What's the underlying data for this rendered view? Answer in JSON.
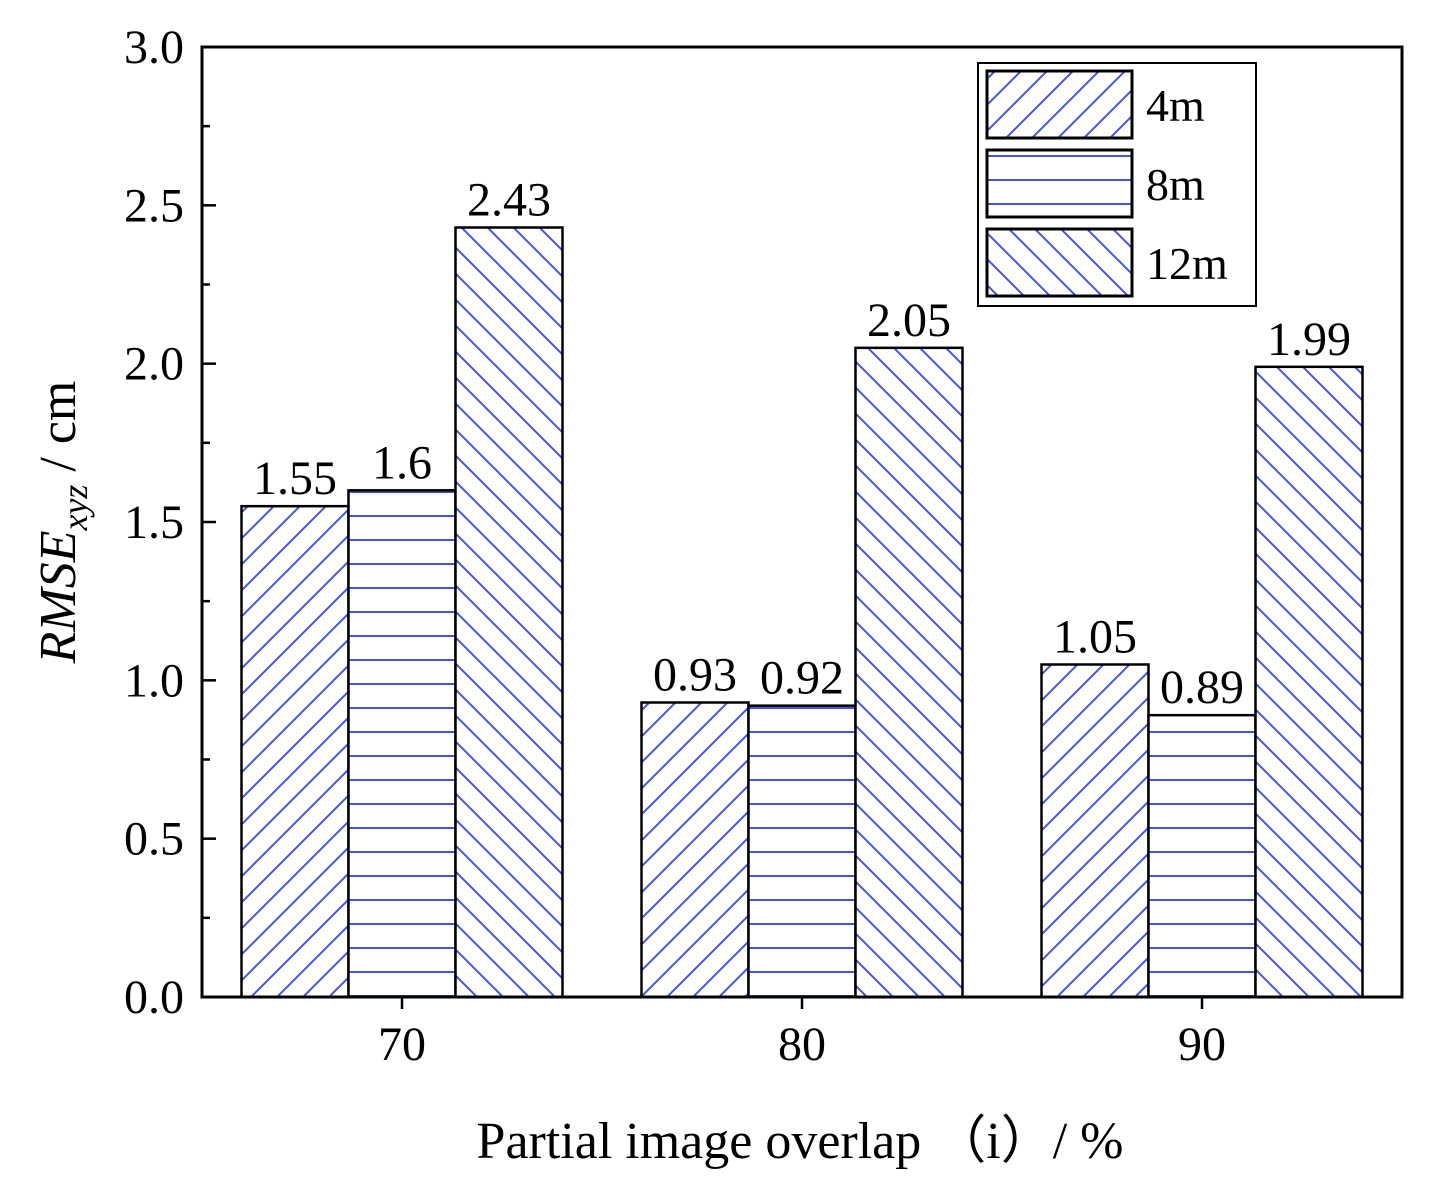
{
  "chart_data": {
    "type": "bar",
    "categories": [
      "70",
      "80",
      "90"
    ],
    "series": [
      {
        "name": "4m",
        "values": [
          1.55,
          0.93,
          1.05
        ],
        "labels": [
          "1.55",
          "0.93",
          "1.05"
        ],
        "pattern": "diag-forward"
      },
      {
        "name": "8m",
        "values": [
          1.6,
          0.92,
          0.89
        ],
        "labels": [
          "1.6",
          "0.92",
          "0.89"
        ],
        "pattern": "horizontal"
      },
      {
        "name": "12m",
        "values": [
          2.43,
          2.05,
          1.99
        ],
        "labels": [
          "2.43",
          "2.05",
          "1.99"
        ],
        "pattern": "diag-backward"
      }
    ],
    "ylim": [
      0,
      3.0
    ],
    "yticks": [
      "0.0",
      "0.5",
      "1.0",
      "1.5",
      "2.0",
      "2.5",
      "3.0"
    ],
    "xlabel": "Partial image overlap （i）/ %",
    "ylabel_main": "RMSE",
    "ylabel_sub": "xyz",
    "ylabel_unit": " / cm",
    "legend_position": "top-right",
    "hatch_color": "#4455dd",
    "grid": false
  }
}
